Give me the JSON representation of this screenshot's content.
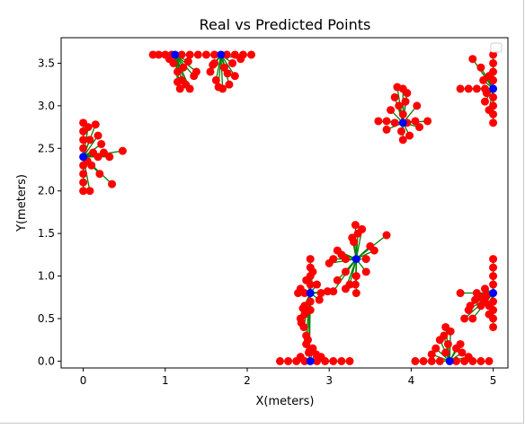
{
  "chart_data": {
    "type": "scatter",
    "title": "Real vs Predicted Points",
    "xlabel": "X(meters)",
    "ylabel": "Y(meters)",
    "xlim": [
      -0.27,
      5.18
    ],
    "ylim": [
      -0.08,
      3.8
    ],
    "xticks": [
      0,
      1,
      2,
      3,
      4,
      5
    ],
    "yticks": [
      0.0,
      0.5,
      1.0,
      1.5,
      2.0,
      2.5,
      3.0,
      3.5
    ],
    "legend": "top-right (empty)",
    "grid": false,
    "colors": {
      "predicted": "#ff0000",
      "real": "#0000ff",
      "link": "#008000"
    },
    "clusters": [
      {
        "real": [
          0.0,
          2.4
        ],
        "predicted": [
          [
            0.0,
            2.0
          ],
          [
            0.0,
            2.1
          ],
          [
            0.0,
            2.2
          ],
          [
            0.0,
            2.3
          ],
          [
            0.0,
            2.5
          ],
          [
            0.0,
            2.6
          ],
          [
            0.0,
            2.7
          ],
          [
            0.0,
            2.8
          ],
          [
            0.08,
            2.0
          ],
          [
            0.12,
            2.45
          ],
          [
            0.18,
            2.4
          ],
          [
            0.25,
            2.45
          ],
          [
            0.32,
            2.4
          ],
          [
            0.48,
            2.47
          ],
          [
            0.35,
            2.08
          ],
          [
            0.2,
            2.2
          ],
          [
            0.15,
            2.78
          ],
          [
            0.05,
            2.35
          ],
          [
            0.08,
            2.6
          ],
          [
            0.1,
            2.3
          ],
          [
            0.22,
            2.55
          ],
          [
            0.06,
            2.75
          ],
          [
            0.18,
            2.65
          ]
        ]
      },
      {
        "real": [
          1.12,
          3.6
        ],
        "predicted": [
          [
            0.85,
            3.6
          ],
          [
            0.92,
            3.6
          ],
          [
            1.0,
            3.6
          ],
          [
            1.08,
            3.6
          ],
          [
            1.2,
            3.6
          ],
          [
            1.3,
            3.6
          ],
          [
            1.4,
            3.6
          ],
          [
            1.1,
            3.5
          ],
          [
            1.15,
            3.4
          ],
          [
            1.2,
            3.3
          ],
          [
            1.3,
            3.2
          ],
          [
            1.18,
            3.2
          ],
          [
            1.25,
            3.25
          ],
          [
            1.35,
            3.35
          ],
          [
            1.05,
            3.55
          ],
          [
            1.22,
            3.45
          ],
          [
            1.28,
            3.52
          ],
          [
            1.38,
            3.4
          ],
          [
            1.15,
            3.28
          ]
        ]
      },
      {
        "real": [
          1.68,
          3.6
        ],
        "predicted": [
          [
            1.5,
            3.6
          ],
          [
            1.6,
            3.6
          ],
          [
            1.75,
            3.6
          ],
          [
            1.85,
            3.6
          ],
          [
            1.95,
            3.6
          ],
          [
            2.05,
            3.6
          ],
          [
            1.6,
            3.5
          ],
          [
            1.55,
            3.4
          ],
          [
            1.7,
            3.2
          ],
          [
            1.62,
            3.3
          ],
          [
            1.78,
            3.25
          ],
          [
            1.85,
            3.35
          ],
          [
            1.72,
            3.45
          ],
          [
            1.82,
            3.5
          ],
          [
            1.92,
            3.55
          ],
          [
            1.65,
            3.22
          ],
          [
            1.58,
            3.48
          ],
          [
            1.76,
            3.38
          ]
        ]
      },
      {
        "real": [
          3.9,
          2.8
        ],
        "predicted": [
          [
            3.6,
            2.82
          ],
          [
            3.7,
            2.82
          ],
          [
            3.8,
            2.8
          ],
          [
            3.95,
            2.8
          ],
          [
            4.05,
            2.82
          ],
          [
            4.2,
            2.82
          ],
          [
            3.9,
            2.6
          ],
          [
            3.88,
            2.7
          ],
          [
            3.9,
            2.9
          ],
          [
            3.85,
            3.0
          ],
          [
            3.8,
            3.1
          ],
          [
            3.9,
            3.2
          ],
          [
            3.95,
            3.15
          ],
          [
            4.07,
            3.0
          ],
          [
            4.1,
            2.75
          ],
          [
            3.98,
            2.65
          ],
          [
            3.75,
            2.95
          ],
          [
            3.7,
            2.72
          ],
          [
            3.83,
            3.22
          ],
          [
            3.93,
            3.05
          ]
        ]
      },
      {
        "real": [
          5.0,
          3.2
        ],
        "predicted": [
          [
            4.9,
            3.2
          ],
          [
            4.8,
            3.2
          ],
          [
            4.7,
            3.2
          ],
          [
            4.6,
            3.2
          ],
          [
            5.0,
            2.8
          ],
          [
            5.0,
            2.9
          ],
          [
            5.0,
            3.0
          ],
          [
            5.0,
            3.1
          ],
          [
            5.0,
            3.3
          ],
          [
            5.0,
            3.4
          ],
          [
            5.0,
            3.5
          ],
          [
            5.0,
            3.6
          ],
          [
            4.95,
            3.35
          ],
          [
            4.85,
            3.45
          ],
          [
            4.75,
            3.55
          ],
          [
            4.9,
            3.05
          ],
          [
            4.95,
            2.95
          ],
          [
            4.92,
            3.15
          ],
          [
            4.88,
            3.3
          ]
        ]
      },
      {
        "real": [
          2.77,
          0.8
        ],
        "predicted": [
          [
            2.77,
            0.6
          ],
          [
            2.77,
            0.7
          ],
          [
            2.77,
            0.9
          ],
          [
            2.77,
            1.0
          ],
          [
            2.77,
            1.1
          ],
          [
            2.77,
            1.2
          ],
          [
            2.7,
            0.8
          ],
          [
            2.62,
            0.8
          ],
          [
            2.9,
            0.8
          ],
          [
            2.98,
            0.82
          ],
          [
            2.65,
            0.5
          ],
          [
            2.7,
            0.55
          ],
          [
            2.68,
            0.62
          ],
          [
            2.72,
            0.95
          ],
          [
            2.65,
            0.85
          ],
          [
            2.85,
            0.9
          ],
          [
            2.69,
            0.4
          ],
          [
            2.72,
            0.3
          ],
          [
            2.74,
            0.25
          ],
          [
            2.76,
            0.12
          ],
          [
            2.66,
            0.45
          ],
          [
            2.88,
            0.72
          ],
          [
            2.8,
            1.05
          ],
          [
            2.7,
            0.65
          ]
        ]
      },
      {
        "real": [
          2.77,
          0.0
        ],
        "predicted": [
          [
            2.4,
            0.0
          ],
          [
            2.5,
            0.0
          ],
          [
            2.6,
            0.0
          ],
          [
            2.7,
            0.0
          ],
          [
            2.85,
            0.0
          ],
          [
            2.95,
            0.0
          ],
          [
            3.05,
            0.0
          ],
          [
            3.15,
            0.0
          ],
          [
            3.25,
            0.0
          ],
          [
            2.75,
            0.1
          ],
          [
            2.8,
            0.15
          ],
          [
            2.65,
            0.05
          ],
          [
            2.9,
            0.05
          ],
          [
            2.72,
            0.2
          ],
          [
            2.84,
            0.08
          ]
        ]
      },
      {
        "real": [
          3.33,
          1.2
        ],
        "predicted": [
          [
            3.05,
            1.2
          ],
          [
            3.1,
            1.3
          ],
          [
            3.2,
            1.2
          ],
          [
            3.3,
            1.4
          ],
          [
            3.35,
            1.5
          ],
          [
            3.32,
            1.6
          ],
          [
            3.33,
            1.0
          ],
          [
            3.32,
            0.9
          ],
          [
            3.33,
            0.8
          ],
          [
            3.25,
            0.9
          ],
          [
            3.45,
            1.2
          ],
          [
            3.55,
            1.3
          ],
          [
            3.7,
            1.48
          ],
          [
            3.5,
            1.35
          ],
          [
            3.1,
            0.95
          ],
          [
            3.2,
            1.05
          ],
          [
            3.15,
            1.25
          ],
          [
            3.0,
            1.15
          ],
          [
            3.45,
            1.05
          ],
          [
            3.28,
            1.45
          ],
          [
            3.4,
            1.55
          ],
          [
            3.05,
            0.82
          ],
          [
            3.2,
            0.85
          ]
        ]
      },
      {
        "real": [
          4.47,
          0.0
        ],
        "predicted": [
          [
            4.05,
            0.0
          ],
          [
            4.15,
            0.0
          ],
          [
            4.25,
            0.0
          ],
          [
            4.35,
            0.0
          ],
          [
            4.55,
            0.0
          ],
          [
            4.65,
            0.0
          ],
          [
            4.75,
            0.0
          ],
          [
            4.85,
            0.0
          ],
          [
            4.95,
            0.0
          ],
          [
            4.42,
            0.1
          ],
          [
            4.45,
            0.2
          ],
          [
            4.4,
            0.3
          ],
          [
            4.3,
            0.15
          ],
          [
            4.55,
            0.15
          ],
          [
            4.62,
            0.1
          ],
          [
            4.48,
            0.35
          ],
          [
            4.7,
            0.05
          ],
          [
            4.35,
            0.25
          ],
          [
            4.6,
            0.2
          ],
          [
            4.25,
            0.08
          ],
          [
            4.42,
            0.4
          ]
        ]
      },
      {
        "real": [
          5.0,
          0.8
        ],
        "predicted": [
          [
            4.8,
            0.8
          ],
          [
            4.85,
            0.75
          ],
          [
            4.9,
            0.7
          ],
          [
            4.95,
            0.65
          ],
          [
            4.7,
            0.6
          ],
          [
            4.65,
            0.5
          ],
          [
            4.6,
            0.8
          ],
          [
            4.9,
            0.85
          ],
          [
            5.0,
            0.4
          ],
          [
            5.0,
            0.5
          ],
          [
            5.0,
            0.6
          ],
          [
            5.0,
            0.7
          ],
          [
            5.0,
            0.9
          ],
          [
            5.0,
            1.0
          ],
          [
            5.0,
            1.1
          ],
          [
            5.0,
            1.2
          ],
          [
            4.95,
            0.55
          ],
          [
            4.85,
            0.65
          ],
          [
            4.78,
            0.72
          ],
          [
            4.72,
            0.65
          ],
          [
            4.92,
            0.78
          ],
          [
            4.75,
            0.5
          ]
        ]
      }
    ]
  }
}
